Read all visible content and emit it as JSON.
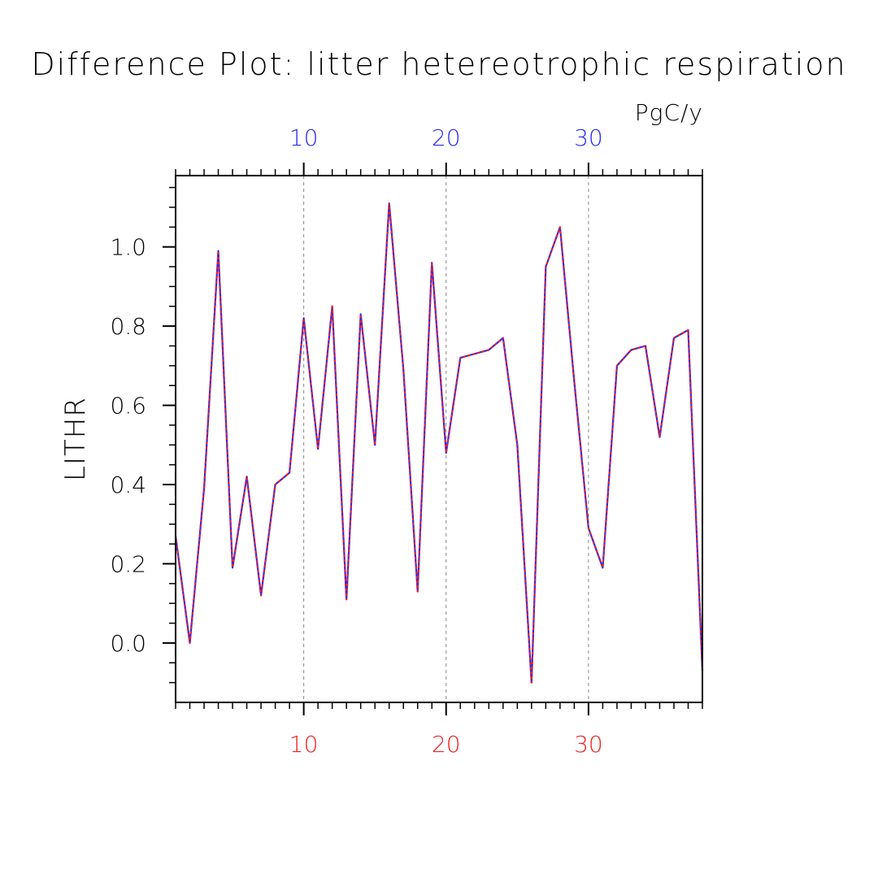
{
  "chart_data": {
    "type": "line",
    "title": "Difference Plot: litter hetereotrophic respiration",
    "units": "PgC/y",
    "ylabel": "LITHR",
    "xlabel": "",
    "xlim": [
      1,
      38
    ],
    "ylim": [
      -0.15,
      1.18
    ],
    "x_ticks": [
      10,
      20,
      30
    ],
    "y_ticks": [
      0.0,
      0.2,
      0.4,
      0.6,
      0.8,
      1.0
    ],
    "y_tick_labels": [
      "0.0",
      "0.2",
      "0.4",
      "0.6",
      "0.8",
      "1.0"
    ],
    "x_grid": true,
    "y_grid": false,
    "colors": {
      "top_axis_labels": "#2a2af0",
      "bottom_axis_labels": "#f02020",
      "series_a": "#2a2af0",
      "series_b": "#f02020",
      "grid": "#888888",
      "axes": "#000000"
    },
    "x": [
      1,
      2,
      3,
      4,
      5,
      6,
      7,
      8,
      9,
      10,
      11,
      12,
      13,
      14,
      15,
      16,
      17,
      18,
      19,
      20,
      21,
      22,
      23,
      24,
      25,
      26,
      27,
      28,
      29,
      30,
      31,
      32,
      33,
      34,
      35,
      36,
      37,
      38
    ],
    "series": [
      {
        "values": [
          0.27,
          0.0,
          0.39,
          0.99,
          0.19,
          0.42,
          0.12,
          0.4,
          0.43,
          0.82,
          0.49,
          0.85,
          0.11,
          0.83,
          0.5,
          1.11,
          0.69,
          0.13,
          0.96,
          0.48,
          0.72,
          0.73,
          0.74,
          0.77,
          0.5,
          -0.1,
          0.95,
          1.05,
          0.66,
          0.29,
          0.19,
          0.7,
          0.74,
          0.75,
          0.52,
          0.77,
          0.79,
          -0.07
        ]
      },
      {
        "values": [
          0.27,
          0.0,
          0.39,
          0.99,
          0.19,
          0.42,
          0.12,
          0.4,
          0.43,
          0.82,
          0.49,
          0.85,
          0.11,
          0.83,
          0.5,
          1.11,
          0.69,
          0.13,
          0.96,
          0.48,
          0.72,
          0.73,
          0.74,
          0.77,
          0.5,
          -0.1,
          0.95,
          1.05,
          0.66,
          0.29,
          0.19,
          0.7,
          0.74,
          0.75,
          0.52,
          0.77,
          0.79,
          -0.07
        ]
      }
    ]
  }
}
